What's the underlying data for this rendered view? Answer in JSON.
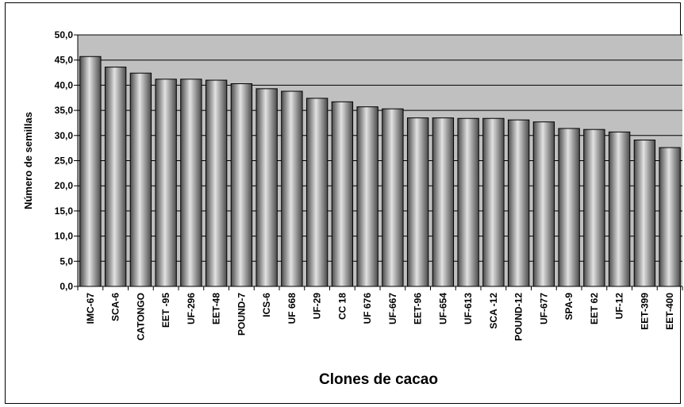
{
  "chart_data": {
    "type": "bar",
    "title": "",
    "xlabel": "Clones de cacao",
    "ylabel": "Número de semillas",
    "ylim": [
      0,
      50
    ],
    "ytick_step": 5,
    "ytick_labels": [
      "0,0",
      "5,0",
      "10,0",
      "15,0",
      "20,0",
      "25,0",
      "30,0",
      "35,0",
      "40,0",
      "45,0",
      "50,0"
    ],
    "grid": true,
    "legend": "none",
    "plot_background": "#c0c0c0",
    "bar_color": "#808080",
    "categories": [
      "IMC-67",
      "SCA-6",
      "CATONGO",
      "EET -95",
      "UF-296",
      "EET-48",
      "POUND-7",
      "ICS-6",
      "UF 668",
      "UF-29",
      "CC 18",
      "UF 676",
      "UF-667",
      "EET-96",
      "UF-654",
      "UF-613",
      "SCA -12",
      "POUND-12",
      "UF-677",
      "SPA-9",
      "EET 62",
      "UF-12",
      "EET-399",
      "EET-400"
    ],
    "values": [
      45.7,
      43.6,
      42.4,
      41.2,
      41.2,
      41.0,
      40.3,
      39.3,
      38.8,
      37.4,
      36.7,
      35.7,
      35.3,
      33.5,
      33.5,
      33.4,
      33.4,
      33.1,
      32.7,
      31.4,
      31.2,
      30.7,
      29.1,
      27.6
    ]
  }
}
